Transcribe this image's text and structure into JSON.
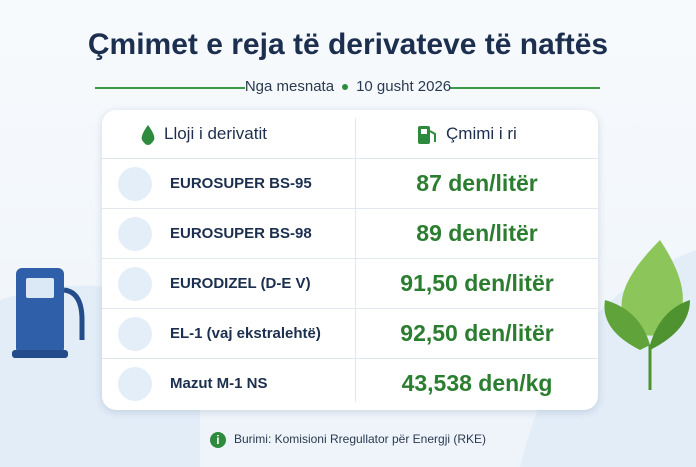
{
  "header": {
    "title": "Çmimet e reja të derivateve të naftës",
    "subtitle": [
      "Nga mesnata",
      "10 gusht 2026"
    ]
  },
  "table": {
    "header": [
      "Lloji i derivatit",
      "Çmimi i ri"
    ],
    "rows": [
      [
        "EUROSUPER BS-95",
        "87 den/litër"
      ],
      [
        "EUROSUPER BS-98",
        "89 den/litër"
      ],
      [
        "EURODIZEL (D-E V)",
        "91,50 den/litër"
      ],
      [
        "EL-1 (vaj ekstralehtë)",
        "92,50 den/litër"
      ],
      [
        "Mazut M-1 NS",
        "43,538 den/kg"
      ]
    ]
  },
  "footer": {
    "source": "Burimi: Komisioni Rregullator për Energji (RKE)"
  }
}
